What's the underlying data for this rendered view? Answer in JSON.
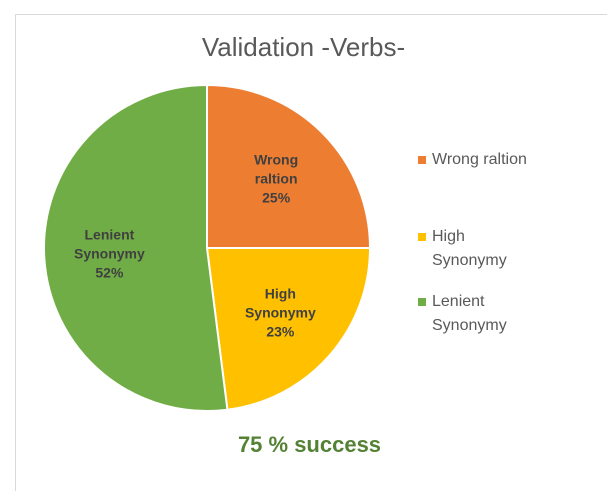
{
  "chart_data": {
    "type": "pie",
    "title": "Validation -Verbs-",
    "categories": [
      "Wrong raltion",
      "High Synonymy",
      "Lenient Synonymy"
    ],
    "values": [
      25,
      23,
      52
    ],
    "value_labels": [
      "25%",
      "23%",
      "52%"
    ],
    "colors": [
      "#ed7d31",
      "#ffc000",
      "#70ad47"
    ],
    "legend": "right",
    "annotation": "75 % success"
  }
}
